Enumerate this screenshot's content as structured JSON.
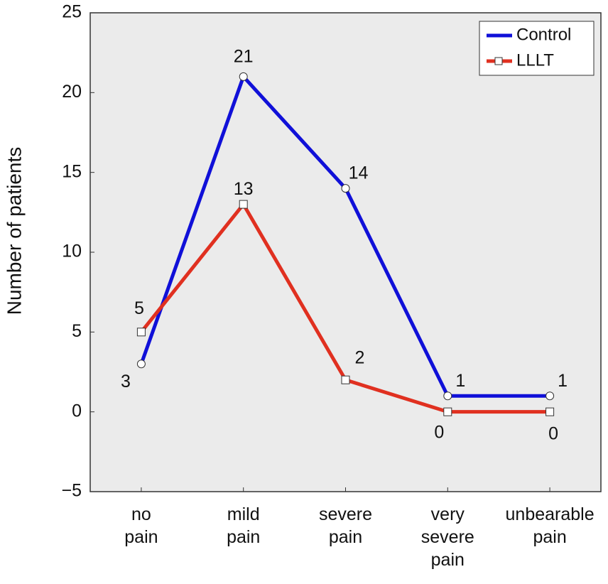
{
  "chart_data": {
    "type": "line",
    "y_label": "Number of patients",
    "categories": [
      "no pain",
      "mild pain",
      "severe pain",
      "very severe pain",
      "unbearable pain"
    ],
    "series": [
      {
        "name": "Control",
        "color": "#1010d8",
        "marker": "circle",
        "values": [
          3,
          21,
          14,
          1,
          1
        ]
      },
      {
        "name": "LLLT",
        "color": "#e03020",
        "marker": "square",
        "values": [
          5,
          13,
          2,
          0,
          0
        ]
      }
    ],
    "ylim": [
      -5,
      25
    ],
    "yticks": [
      {
        "value": -5,
        "label": "−5"
      },
      0,
      5,
      10,
      15,
      20,
      25
    ],
    "legend": "top-right"
  }
}
